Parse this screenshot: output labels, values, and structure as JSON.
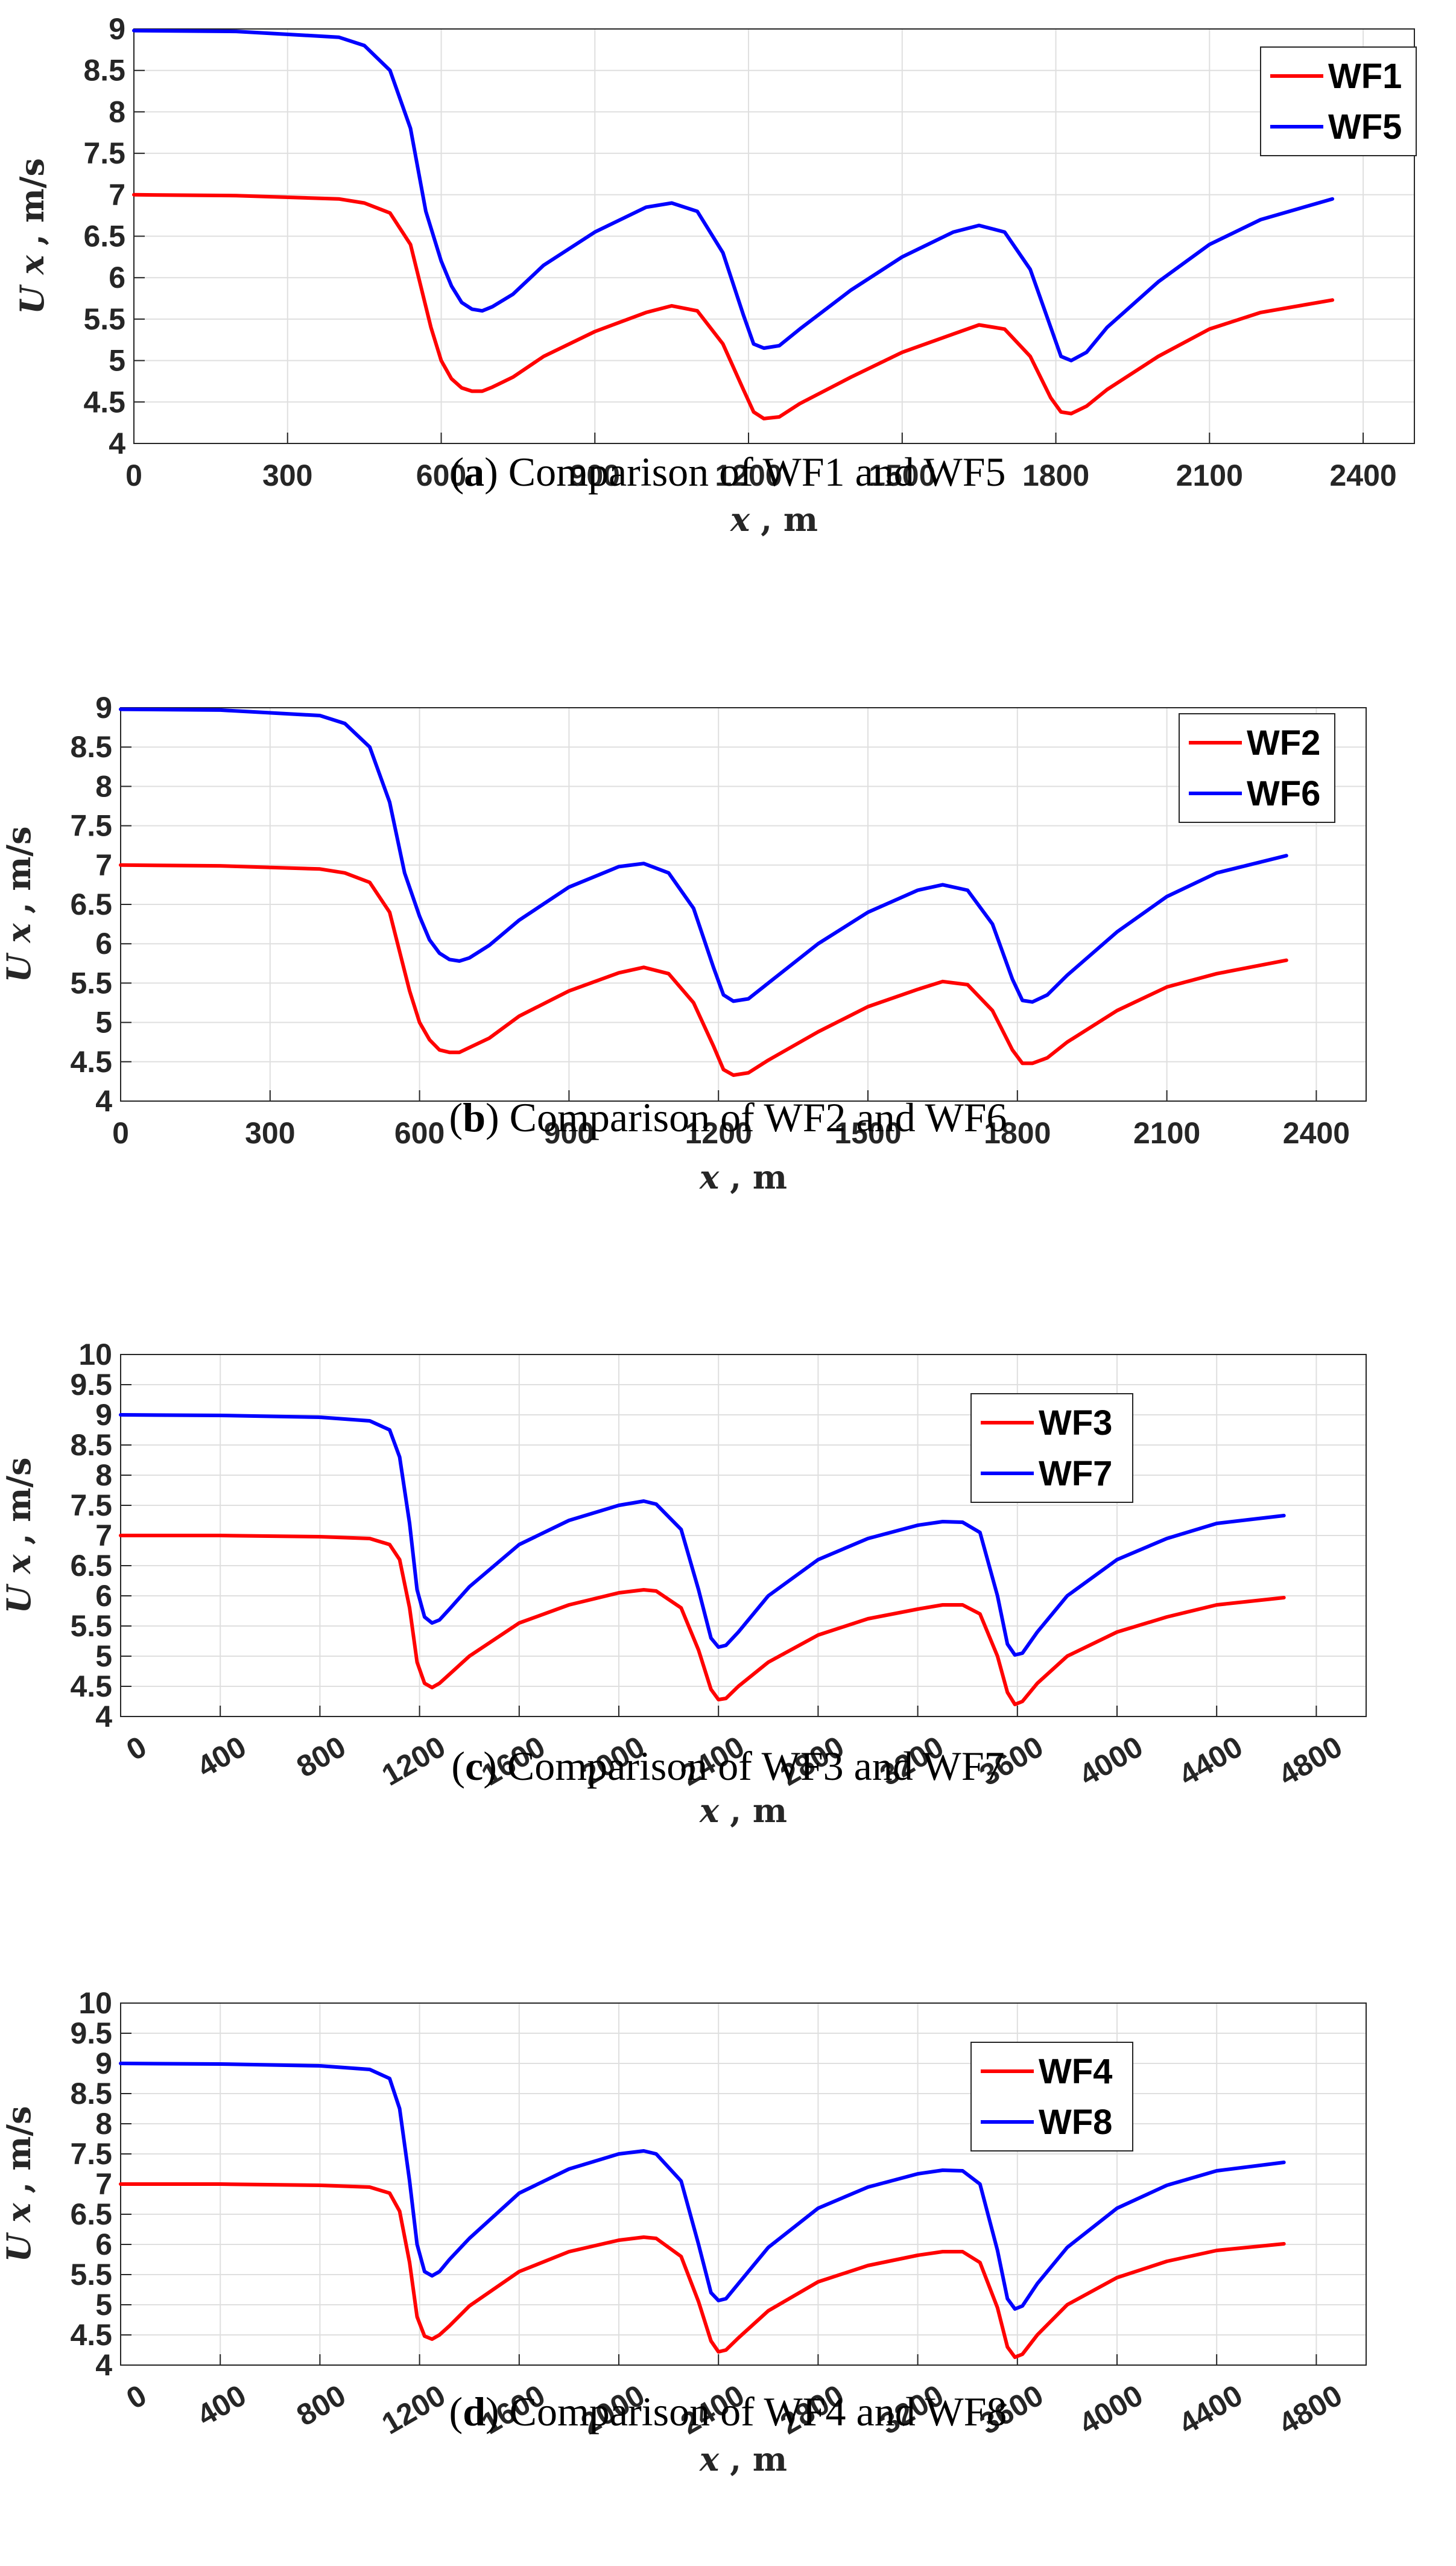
{
  "figure": {
    "colors": {
      "series1": "#ff0000",
      "series2": "#0000ff",
      "grid": "#dfdfdf",
      "axis": "#262626"
    }
  },
  "chart_data": [
    {
      "type": "line",
      "panel": "a",
      "caption_letter": "a",
      "caption": ") Comparison of WF1 and WF5",
      "xlabel_var": "x",
      "xlabel_unit": ", m",
      "ylabel_var": "U x",
      "ylabel_unit": ", m/s",
      "xlim": [
        0,
        2500
      ],
      "ylim": [
        4,
        9
      ],
      "xticks": [
        0,
        300,
        600,
        900,
        1200,
        1500,
        1800,
        2100,
        2400
      ],
      "yticks": [
        4,
        4.5,
        5,
        5.5,
        6,
        6.5,
        7,
        7.5,
        8,
        8.5,
        9
      ],
      "xtick_rotate": false,
      "legend_position": "top-right",
      "series": [
        {
          "name": "WF1",
          "color": "#ff0000",
          "x": [
            0,
            200,
            400,
            450,
            500,
            540,
            580,
            600,
            620,
            640,
            660,
            680,
            700,
            740,
            800,
            900,
            1000,
            1050,
            1100,
            1150,
            1190,
            1210,
            1230,
            1260,
            1300,
            1400,
            1500,
            1600,
            1650,
            1700,
            1750,
            1790,
            1810,
            1830,
            1860,
            1900,
            2000,
            2100,
            2200,
            2340
          ],
          "y": [
            7.0,
            6.99,
            6.95,
            6.9,
            6.78,
            6.4,
            5.4,
            5.0,
            4.78,
            4.67,
            4.63,
            4.63,
            4.68,
            4.8,
            5.05,
            5.35,
            5.58,
            5.66,
            5.6,
            5.2,
            4.65,
            4.38,
            4.3,
            4.32,
            4.48,
            4.8,
            5.1,
            5.32,
            5.43,
            5.38,
            5.05,
            4.55,
            4.38,
            4.36,
            4.45,
            4.65,
            5.05,
            5.38,
            5.58,
            5.73
          ]
        },
        {
          "name": "WF5",
          "color": "#0000ff",
          "x": [
            0,
            200,
            400,
            450,
            500,
            540,
            570,
            600,
            620,
            640,
            660,
            680,
            700,
            740,
            800,
            900,
            1000,
            1050,
            1100,
            1150,
            1190,
            1210,
            1230,
            1260,
            1300,
            1400,
            1500,
            1600,
            1650,
            1700,
            1750,
            1790,
            1810,
            1830,
            1860,
            1900,
            2000,
            2100,
            2200,
            2340
          ],
          "y": [
            8.98,
            8.97,
            8.9,
            8.8,
            8.5,
            7.8,
            6.8,
            6.2,
            5.9,
            5.7,
            5.62,
            5.6,
            5.65,
            5.8,
            6.15,
            6.55,
            6.85,
            6.9,
            6.8,
            6.3,
            5.55,
            5.2,
            5.15,
            5.18,
            5.38,
            5.85,
            6.25,
            6.55,
            6.63,
            6.55,
            6.1,
            5.4,
            5.05,
            5.0,
            5.1,
            5.4,
            5.95,
            6.4,
            6.7,
            6.95
          ]
        }
      ]
    },
    {
      "type": "line",
      "panel": "b",
      "caption_letter": "b",
      "caption": ") Comparison of WF2 and WF6",
      "xlabel_var": "x",
      "xlabel_unit": ", m",
      "ylabel_var": "U x",
      "ylabel_unit": ", m/s",
      "xlim": [
        0,
        2500
      ],
      "ylim": [
        4,
        9
      ],
      "xticks": [
        0,
        300,
        600,
        900,
        1200,
        1500,
        1800,
        2100,
        2400
      ],
      "yticks": [
        4,
        4.5,
        5,
        5.5,
        6,
        6.5,
        7,
        7.5,
        8,
        8.5,
        9
      ],
      "xtick_rotate": false,
      "legend_position": "top-right",
      "series": [
        {
          "name": "WF2",
          "color": "#ff0000",
          "x": [
            0,
            200,
            400,
            450,
            500,
            540,
            580,
            600,
            620,
            640,
            660,
            680,
            700,
            740,
            800,
            900,
            1000,
            1050,
            1100,
            1150,
            1190,
            1210,
            1230,
            1260,
            1300,
            1400,
            1500,
            1600,
            1650,
            1700,
            1750,
            1790,
            1810,
            1830,
            1860,
            1900,
            2000,
            2100,
            2200,
            2340
          ],
          "y": [
            7.0,
            6.99,
            6.95,
            6.9,
            6.78,
            6.4,
            5.4,
            5.0,
            4.78,
            4.65,
            4.62,
            4.62,
            4.68,
            4.8,
            5.08,
            5.4,
            5.63,
            5.7,
            5.62,
            5.25,
            4.7,
            4.4,
            4.33,
            4.36,
            4.52,
            4.88,
            5.2,
            5.42,
            5.52,
            5.48,
            5.15,
            4.65,
            4.48,
            4.48,
            4.55,
            4.75,
            5.15,
            5.45,
            5.62,
            5.79
          ]
        },
        {
          "name": "WF6",
          "color": "#0000ff",
          "x": [
            0,
            200,
            400,
            450,
            500,
            540,
            570,
            600,
            620,
            640,
            660,
            680,
            700,
            740,
            800,
            900,
            1000,
            1050,
            1100,
            1150,
            1190,
            1210,
            1230,
            1260,
            1300,
            1400,
            1500,
            1600,
            1650,
            1700,
            1750,
            1790,
            1810,
            1830,
            1860,
            1900,
            2000,
            2100,
            2200,
            2340
          ],
          "y": [
            8.98,
            8.97,
            8.9,
            8.8,
            8.5,
            7.8,
            6.9,
            6.35,
            6.05,
            5.88,
            5.8,
            5.78,
            5.82,
            5.98,
            6.3,
            6.72,
            6.98,
            7.02,
            6.9,
            6.45,
            5.7,
            5.35,
            5.27,
            5.3,
            5.5,
            6.0,
            6.4,
            6.68,
            6.75,
            6.68,
            6.25,
            5.55,
            5.28,
            5.26,
            5.35,
            5.6,
            6.15,
            6.6,
            6.9,
            7.12
          ]
        }
      ]
    },
    {
      "type": "line",
      "panel": "c",
      "caption_letter": "c",
      "caption": ") Comparison of WF3 and WF7",
      "xlabel_var": "x",
      "xlabel_unit": ", m",
      "ylabel_var": "U x",
      "ylabel_unit": ", m/s",
      "xlim": [
        0,
        5000
      ],
      "ylim": [
        4,
        10
      ],
      "xticks": [
        0,
        400,
        800,
        1200,
        1600,
        2000,
        2400,
        2800,
        3200,
        3600,
        4000,
        4400,
        4800
      ],
      "yticks": [
        4,
        4.5,
        5,
        5.5,
        6,
        6.5,
        7,
        7.5,
        8,
        8.5,
        9,
        9.5,
        10
      ],
      "xtick_rotate": true,
      "legend_position": "top-right",
      "series": [
        {
          "name": "WF3",
          "color": "#ff0000",
          "x": [
            0,
            400,
            800,
            1000,
            1080,
            1120,
            1160,
            1190,
            1220,
            1250,
            1280,
            1320,
            1400,
            1600,
            1800,
            2000,
            2100,
            2150,
            2250,
            2320,
            2370,
            2400,
            2430,
            2480,
            2600,
            2800,
            3000,
            3200,
            3300,
            3380,
            3450,
            3520,
            3560,
            3590,
            3620,
            3680,
            3800,
            4000,
            4200,
            4400,
            4670
          ],
          "y": [
            7.0,
            7.0,
            6.98,
            6.95,
            6.85,
            6.6,
            5.8,
            4.9,
            4.55,
            4.48,
            4.55,
            4.7,
            5.0,
            5.55,
            5.85,
            6.05,
            6.1,
            6.08,
            5.8,
            5.1,
            4.45,
            4.28,
            4.3,
            4.5,
            4.9,
            5.35,
            5.62,
            5.78,
            5.85,
            5.85,
            5.7,
            5.0,
            4.4,
            4.2,
            4.25,
            4.55,
            5.0,
            5.4,
            5.65,
            5.85,
            5.97
          ]
        },
        {
          "name": "WF7",
          "color": "#0000ff",
          "x": [
            0,
            400,
            800,
            1000,
            1080,
            1120,
            1160,
            1190,
            1220,
            1250,
            1280,
            1320,
            1400,
            1600,
            1800,
            2000,
            2100,
            2150,
            2250,
            2320,
            2370,
            2400,
            2430,
            2480,
            2600,
            2800,
            3000,
            3200,
            3300,
            3380,
            3450,
            3520,
            3560,
            3590,
            3620,
            3680,
            3800,
            4000,
            4200,
            4400,
            4670
          ],
          "y": [
            9.0,
            8.99,
            8.96,
            8.9,
            8.75,
            8.3,
            7.2,
            6.1,
            5.65,
            5.55,
            5.6,
            5.78,
            6.15,
            6.85,
            7.25,
            7.5,
            7.57,
            7.52,
            7.1,
            6.1,
            5.3,
            5.15,
            5.18,
            5.4,
            6.0,
            6.6,
            6.95,
            7.17,
            7.23,
            7.22,
            7.05,
            6.0,
            5.2,
            5.02,
            5.05,
            5.4,
            6.0,
            6.6,
            6.95,
            7.2,
            7.33
          ]
        }
      ]
    },
    {
      "type": "line",
      "panel": "d",
      "caption_letter": "d",
      "caption": ") Comparison of WF4 and WF8",
      "xlabel_var": "x",
      "xlabel_unit": ", m",
      "ylabel_var": "U x",
      "ylabel_unit": ", m/s",
      "xlim": [
        0,
        5000
      ],
      "ylim": [
        4,
        10
      ],
      "xticks": [
        0,
        400,
        800,
        1200,
        1600,
        2000,
        2400,
        2800,
        3200,
        3600,
        4000,
        4400,
        4800
      ],
      "yticks": [
        4,
        4.5,
        5,
        5.5,
        6,
        6.5,
        7,
        7.5,
        8,
        8.5,
        9,
        9.5,
        10
      ],
      "xtick_rotate": true,
      "legend_position": "top-right",
      "series": [
        {
          "name": "WF4",
          "color": "#ff0000",
          "x": [
            0,
            400,
            800,
            1000,
            1080,
            1120,
            1160,
            1190,
            1220,
            1250,
            1280,
            1320,
            1400,
            1600,
            1800,
            2000,
            2100,
            2150,
            2250,
            2320,
            2370,
            2400,
            2430,
            2480,
            2600,
            2800,
            3000,
            3200,
            3300,
            3380,
            3450,
            3520,
            3560,
            3590,
            3620,
            3680,
            3800,
            4000,
            4200,
            4400,
            4670
          ],
          "y": [
            7.0,
            7.0,
            6.98,
            6.95,
            6.85,
            6.55,
            5.7,
            4.8,
            4.48,
            4.43,
            4.5,
            4.65,
            4.98,
            5.55,
            5.88,
            6.07,
            6.12,
            6.1,
            5.8,
            5.05,
            4.4,
            4.22,
            4.25,
            4.45,
            4.9,
            5.38,
            5.65,
            5.82,
            5.88,
            5.88,
            5.7,
            4.95,
            4.3,
            4.13,
            4.18,
            4.5,
            5.0,
            5.45,
            5.72,
            5.9,
            6.01
          ]
        },
        {
          "name": "WF8",
          "color": "#0000ff",
          "x": [
            0,
            400,
            800,
            1000,
            1080,
            1120,
            1160,
            1190,
            1220,
            1250,
            1280,
            1320,
            1400,
            1600,
            1800,
            2000,
            2100,
            2150,
            2250,
            2320,
            2370,
            2400,
            2430,
            2480,
            2600,
            2800,
            3000,
            3200,
            3300,
            3380,
            3450,
            3520,
            3560,
            3590,
            3620,
            3680,
            3800,
            4000,
            4200,
            4400,
            4670
          ],
          "y": [
            9.0,
            8.99,
            8.96,
            8.9,
            8.75,
            8.25,
            7.05,
            6.0,
            5.55,
            5.48,
            5.55,
            5.75,
            6.1,
            6.85,
            7.25,
            7.5,
            7.55,
            7.5,
            7.05,
            6.0,
            5.2,
            5.07,
            5.1,
            5.35,
            5.95,
            6.6,
            6.95,
            7.17,
            7.23,
            7.22,
            7.0,
            5.9,
            5.1,
            4.93,
            4.98,
            5.35,
            5.95,
            6.6,
            6.98,
            7.22,
            7.36
          ]
        }
      ]
    }
  ]
}
